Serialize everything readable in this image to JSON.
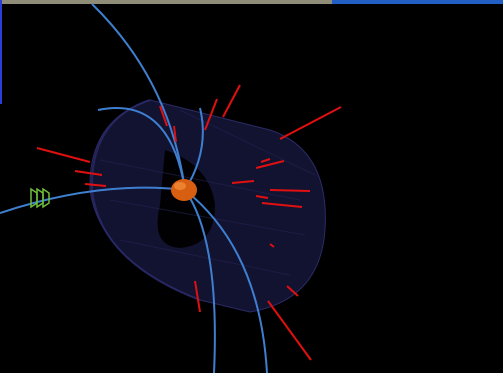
{
  "colors": {
    "background": "#000000",
    "progress_fill": "#8f8c78",
    "progress_track": "#225fc4",
    "left_marker": "#2b3fd6",
    "track": "#3f7fd0",
    "jet": "#e01010",
    "vertex": "#e06818",
    "detector": "#1a1a44",
    "muon_chamber": "#6fbf3a"
  },
  "viewer": {
    "progress_fraction": 0.66
  },
  "scene": {
    "detector_shape": "cylinder",
    "vertex_icon": "vertex-icon",
    "muon_icon": "muon-chamber-icon"
  }
}
